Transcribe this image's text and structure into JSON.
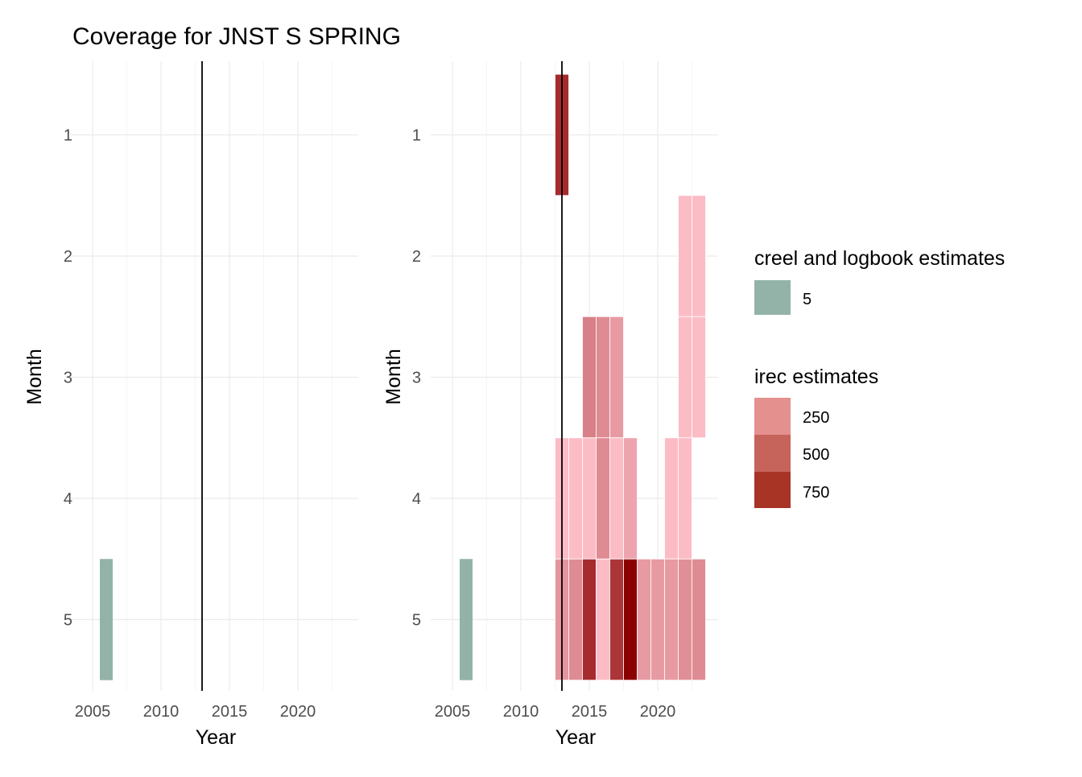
{
  "chart_data": {
    "type": "heatmap",
    "title": "Coverage for JNST S SPRING",
    "reference_line_year": 2013,
    "panels": [
      {
        "id": "left",
        "xlabel": "Year",
        "ylabel": "Month",
        "x_ticks": [
          "2005",
          "2010",
          "2015",
          "2020"
        ],
        "y_ticks": [
          "1",
          "2",
          "3",
          "4",
          "5"
        ],
        "tiles": [
          {
            "year": 2006,
            "month": 5,
            "layer": "creel",
            "value": 5
          }
        ]
      },
      {
        "id": "right",
        "xlabel": "Year",
        "ylabel": "Month",
        "x_ticks": [
          "2005",
          "2010",
          "2015",
          "2020"
        ],
        "y_ticks": [
          "1",
          "2",
          "3",
          "4",
          "5"
        ],
        "tiles": [
          {
            "year": 2006,
            "month": 5,
            "layer": "creel",
            "value": 5
          },
          {
            "year": 2013,
            "month": 1,
            "layer": "irec",
            "value": 700
          },
          {
            "year": 2022,
            "month": 2,
            "layer": "irec",
            "value": 20
          },
          {
            "year": 2023,
            "month": 2,
            "layer": "irec",
            "value": 20
          },
          {
            "year": 2015,
            "month": 3,
            "layer": "irec",
            "value": 300
          },
          {
            "year": 2016,
            "month": 3,
            "layer": "irec",
            "value": 250
          },
          {
            "year": 2017,
            "month": 3,
            "layer": "irec",
            "value": 180
          },
          {
            "year": 2022,
            "month": 3,
            "layer": "irec",
            "value": 20
          },
          {
            "year": 2023,
            "month": 3,
            "layer": "irec",
            "value": 20
          },
          {
            "year": 2013,
            "month": 4,
            "layer": "irec",
            "value": 20
          },
          {
            "year": 2014,
            "month": 4,
            "layer": "irec",
            "value": 20
          },
          {
            "year": 2015,
            "month": 4,
            "layer": "irec",
            "value": 20
          },
          {
            "year": 2016,
            "month": 4,
            "layer": "irec",
            "value": 250
          },
          {
            "year": 2017,
            "month": 4,
            "layer": "irec",
            "value": 20
          },
          {
            "year": 2018,
            "month": 4,
            "layer": "irec",
            "value": 130
          },
          {
            "year": 2021,
            "month": 4,
            "layer": "irec",
            "value": 20
          },
          {
            "year": 2022,
            "month": 4,
            "layer": "irec",
            "value": 20
          },
          {
            "year": 2013,
            "month": 5,
            "layer": "irec",
            "value": 200
          },
          {
            "year": 2014,
            "month": 5,
            "layer": "irec",
            "value": 250
          },
          {
            "year": 2015,
            "month": 5,
            "layer": "irec",
            "value": 700
          },
          {
            "year": 2016,
            "month": 5,
            "layer": "irec",
            "value": 20
          },
          {
            "year": 2017,
            "month": 5,
            "layer": "irec",
            "value": 650
          },
          {
            "year": 2018,
            "month": 5,
            "layer": "irec",
            "value": 900
          },
          {
            "year": 2019,
            "month": 5,
            "layer": "irec",
            "value": 180
          },
          {
            "year": 2020,
            "month": 5,
            "layer": "irec",
            "value": 180
          },
          {
            "year": 2021,
            "month": 5,
            "layer": "irec",
            "value": 180
          },
          {
            "year": 2022,
            "month": 5,
            "layer": "irec",
            "value": 230
          },
          {
            "year": 2023,
            "month": 5,
            "layer": "irec",
            "value": 250
          }
        ]
      }
    ],
    "legends": [
      {
        "id": "creel",
        "title": "creel and logbook estimates",
        "entries": [
          {
            "label": "5",
            "color": "#93b3a8"
          }
        ]
      },
      {
        "id": "irec",
        "title": "irec estimates",
        "entries": [
          {
            "label": "250",
            "color": "#e3908f"
          },
          {
            "label": "500",
            "color": "#c6635b"
          },
          {
            "label": "750",
            "color": "#a83426"
          }
        ]
      }
    ],
    "colors": {
      "creel": "#93b3a8",
      "irec_low": "#ffc0cb",
      "irec_high": "#8b0000",
      "reference_line": "#000000"
    },
    "irec_scale_range": [
      0,
      900
    ],
    "grid": true
  }
}
